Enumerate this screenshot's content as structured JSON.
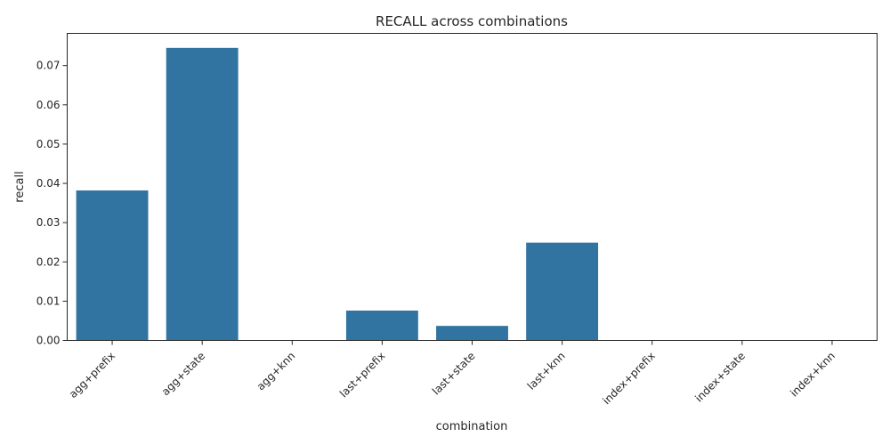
{
  "chart_data": {
    "type": "bar",
    "title": "RECALL across combinations",
    "xlabel": "combination",
    "ylabel": "recall",
    "categories": [
      "agg+prefix",
      "agg+state",
      "agg+knn",
      "last+prefix",
      "last+state",
      "last+knn",
      "index+prefix",
      "index+state",
      "index+knn"
    ],
    "values": [
      0.0382,
      0.0745,
      0.0,
      0.0076,
      0.0037,
      0.0249,
      0.0,
      0.0,
      0.0
    ],
    "ylim": [
      0,
      0.0782
    ],
    "yticks": [
      0.0,
      0.01,
      0.02,
      0.03,
      0.04,
      0.05,
      0.06,
      0.07
    ],
    "ytick_labels": [
      "0.00",
      "0.01",
      "0.02",
      "0.03",
      "0.04",
      "0.05",
      "0.06",
      "0.07"
    ],
    "bar_color": "#3274a1",
    "grid": false,
    "legend": "none"
  }
}
